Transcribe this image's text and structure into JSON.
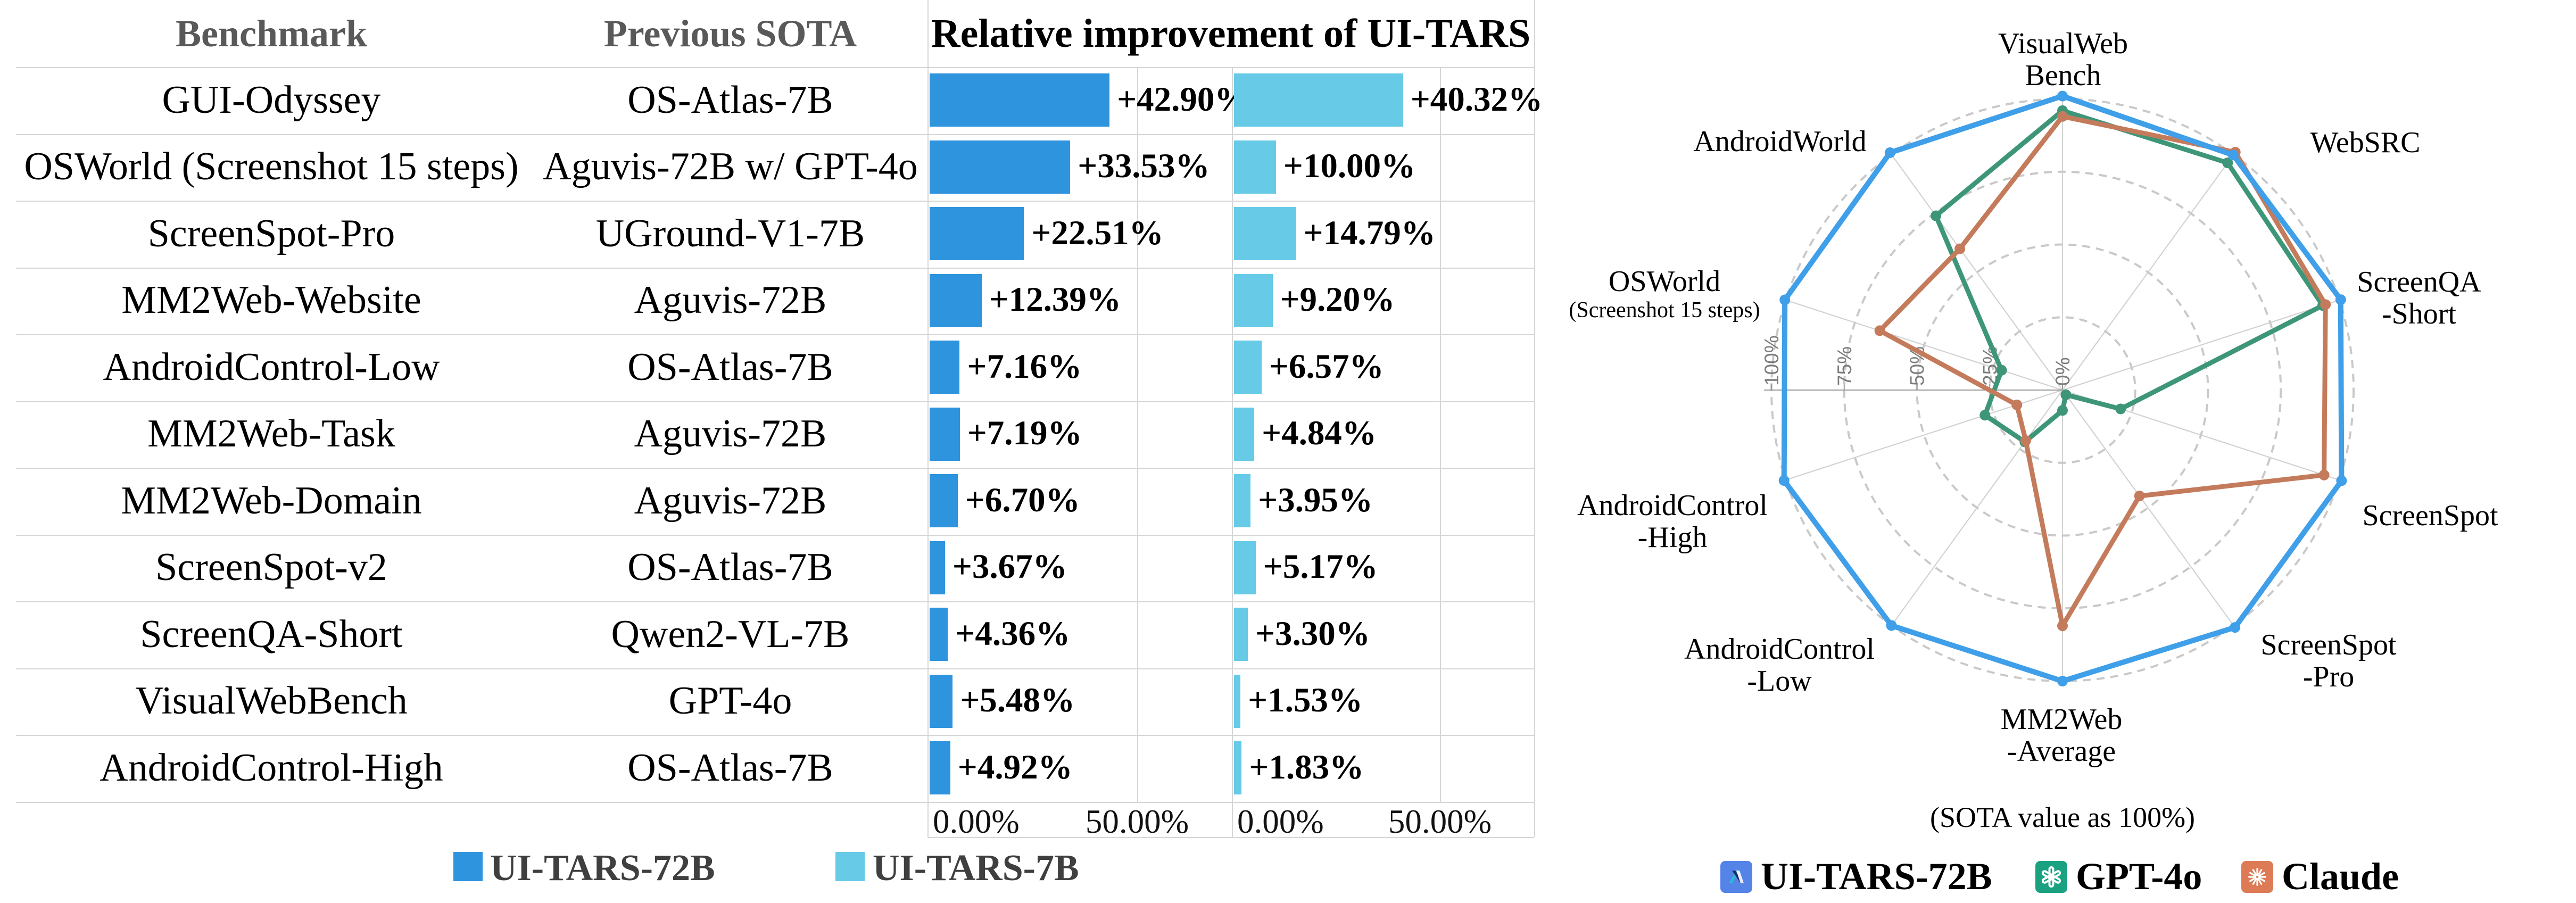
{
  "chart_data": [
    {
      "type": "bar",
      "title": "Relative improvement of UI-TARS",
      "orientation": "horizontal",
      "columns": [
        "Benchmark",
        "Previous SOTA"
      ],
      "categories": [
        "GUI-Odyssey",
        "OSWorld (Screenshot 15 steps)",
        "ScreenSpot-Pro",
        "MM2Web-Website",
        "AndroidControl-Low",
        "MM2Web-Task",
        "MM2Web-Domain",
        "ScreenSpot-v2",
        "ScreenQA-Short",
        "VisualWebBench",
        "AndroidControl-High"
      ],
      "previous_sota": [
        "OS-Atlas-7B",
        "Aguvis-72B w/ GPT-4o",
        "UGround-V1-7B",
        "Aguvis-72B",
        "OS-Atlas-7B",
        "Aguvis-72B",
        "Aguvis-72B",
        "OS-Atlas-7B",
        "Qwen2-VL-7B",
        "GPT-4o",
        "OS-Atlas-7B"
      ],
      "series": [
        {
          "name": "UI-TARS-72B",
          "color": "#2e94de",
          "values": [
            42.9,
            33.53,
            22.51,
            12.39,
            7.16,
            7.19,
            6.7,
            3.67,
            4.36,
            5.48,
            4.92
          ],
          "labels": [
            "+42.90%",
            "+33.53%",
            "+22.51%",
            "+12.39%",
            "+7.16%",
            "+7.19%",
            "+6.70%",
            "+3.67%",
            "+4.36%",
            "+5.48%",
            "+4.92%"
          ]
        },
        {
          "name": "UI-TARS-7B",
          "color": "#67cbe8",
          "values": [
            40.32,
            10.0,
            14.79,
            9.2,
            6.57,
            4.84,
            3.95,
            5.17,
            3.3,
            1.53,
            1.83
          ],
          "labels": [
            "+40.32%",
            "+10.00%",
            "+14.79%",
            "+9.20%",
            "+6.57%",
            "+4.84%",
            "+3.95%",
            "+5.17%",
            "+3.30%",
            "+1.53%",
            "+1.83%"
          ]
        }
      ],
      "xlabel": "",
      "ylabel": "",
      "axis_ticks": [
        "0.00%",
        "50.00%"
      ],
      "xlim": [
        0,
        72.5
      ],
      "grid": true,
      "legend_position": "bottom"
    },
    {
      "type": "radar",
      "note": "(SOTA value as 100%)",
      "axes": [
        "VisualWebBench",
        "WebSRC",
        "ScreenQA-Short",
        "ScreenSpot",
        "ScreenSpot-Pro",
        "MM2Web-Average",
        "AndroidControl-Low",
        "AndroidControl-High",
        "OSWorld (Screenshot 15 steps)",
        "AndroidWorld"
      ],
      "ring_ticks": [
        "0%",
        "25%",
        "50%",
        "75%",
        "100%"
      ],
      "rlim": [
        0,
        100
      ],
      "series": [
        {
          "name": "UI-TARS-72B",
          "color": "#3f9fe8",
          "values": [
            101,
            99.8,
            100.5,
            100.8,
            100.8,
            100,
            100,
            100.6,
            100.3,
            100.8
          ]
        },
        {
          "name": "GPT-4o",
          "color": "#3e9678",
          "values": [
            96,
            96.5,
            94,
            21,
            2,
            7,
            22,
            28,
            22,
            74
          ]
        },
        {
          "name": "Claude",
          "color": "#c47b5c",
          "values": [
            94,
            101,
            95,
            94.5,
            45,
            81,
            21.5,
            16.5,
            66,
            60
          ]
        }
      ],
      "legend_position": "bottom"
    }
  ],
  "bar_chart": {
    "header_benchmark": "Benchmark",
    "header_sota": "Previous SOTA",
    "title": "Relative improvement of UI-TARS",
    "tick0": "0.00%",
    "tick50": "50.00%",
    "legend": [
      {
        "label": "UI-TARS-72B",
        "color": "#2e94de"
      },
      {
        "label": "UI-TARS-7B",
        "color": "#67cbe8"
      }
    ]
  },
  "radar_chart": {
    "note": "(SOTA value as 100%)",
    "axis_labels": [
      {
        "lines": [
          "VisualWeb",
          "Bench"
        ]
      },
      {
        "lines": [
          "WebSRC"
        ]
      },
      {
        "lines": [
          "ScreenQA",
          "-Short"
        ]
      },
      {
        "lines": [
          "ScreenSpot"
        ]
      },
      {
        "lines": [
          "ScreenSpot",
          "-Pro"
        ]
      },
      {
        "lines": [
          "MM2Web",
          "-Average"
        ]
      },
      {
        "lines": [
          "AndroidControl",
          "-Low"
        ]
      },
      {
        "lines": [
          "AndroidControl",
          "-High"
        ]
      },
      {
        "lines": [
          "OSWorld"
        ],
        "sub": "(Screenshot 15 steps)"
      },
      {
        "lines": [
          "AndroidWorld"
        ]
      }
    ],
    "legend": [
      {
        "label": "UI-TARS-72B",
        "icon": "ui-tars-logo",
        "color": "#5584e8"
      },
      {
        "label": "GPT-4o",
        "icon": "openai-logo",
        "color": "#19a180"
      },
      {
        "label": "Claude",
        "icon": "claude-logo",
        "color": "#dd7b57"
      }
    ]
  }
}
